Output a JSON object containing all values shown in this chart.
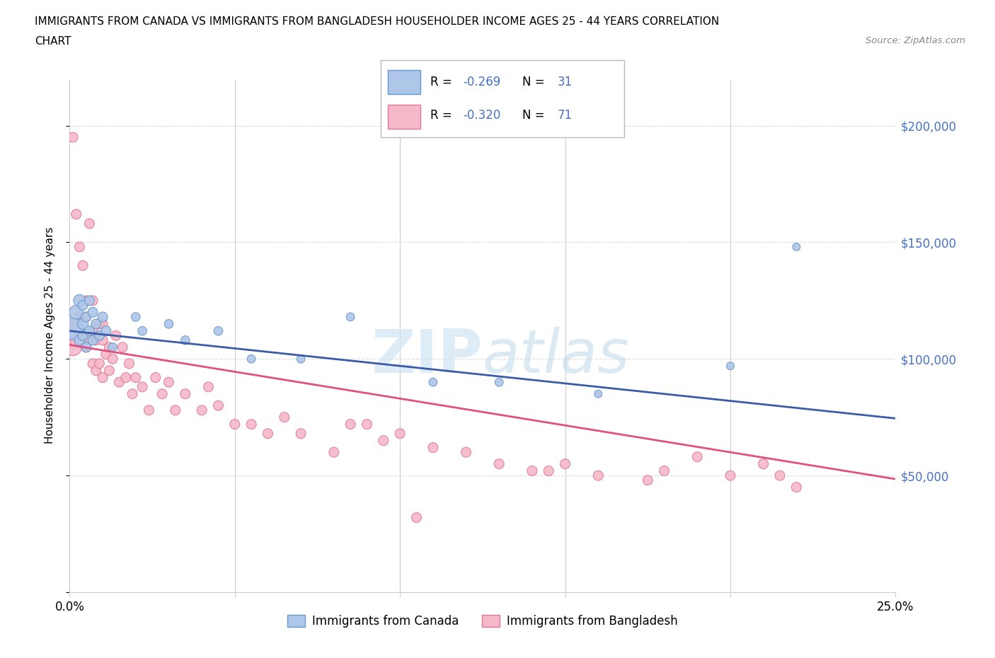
{
  "title_line1": "IMMIGRANTS FROM CANADA VS IMMIGRANTS FROM BANGLADESH HOUSEHOLDER INCOME AGES 25 - 44 YEARS CORRELATION",
  "title_line2": "CHART",
  "source": "Source: ZipAtlas.com",
  "ylabel": "Householder Income Ages 25 - 44 years",
  "xlim": [
    0.0,
    0.25
  ],
  "ylim": [
    0,
    220000
  ],
  "yticks": [
    0,
    50000,
    100000,
    150000,
    200000
  ],
  "xticks": [
    0.0,
    0.05,
    0.1,
    0.15,
    0.2,
    0.25
  ],
  "canada_color": "#aec6e8",
  "canada_edge_color": "#6699cc",
  "bangladesh_color": "#f5b8c8",
  "bangladesh_edge_color": "#e07898",
  "canada_R": -0.269,
  "canada_N": 31,
  "bangladesh_R": -0.32,
  "bangladesh_N": 71,
  "canada_line_color": "#3a5ca8",
  "bangladesh_line_color": "#e05080",
  "watermark": "ZIPatlas",
  "legend_R_color": "#4472c4",
  "canada_intercept": 112000,
  "canada_slope": -150000,
  "bangladesh_intercept": 106000,
  "bangladesh_slope": -230000,
  "canada_scatter_x": [
    0.001,
    0.002,
    0.003,
    0.003,
    0.004,
    0.004,
    0.004,
    0.005,
    0.005,
    0.006,
    0.006,
    0.007,
    0.007,
    0.008,
    0.009,
    0.01,
    0.011,
    0.013,
    0.02,
    0.022,
    0.03,
    0.035,
    0.045,
    0.055,
    0.07,
    0.085,
    0.11,
    0.13,
    0.16,
    0.2,
    0.22
  ],
  "canada_scatter_y": [
    113000,
    120000,
    125000,
    108000,
    115000,
    110000,
    123000,
    105000,
    118000,
    112000,
    125000,
    108000,
    120000,
    115000,
    110000,
    118000,
    112000,
    105000,
    118000,
    112000,
    115000,
    108000,
    112000,
    100000,
    100000,
    118000,
    90000,
    90000,
    85000,
    97000,
    148000
  ],
  "canada_scatter_size": [
    500,
    200,
    150,
    120,
    120,
    100,
    100,
    100,
    100,
    100,
    100,
    100,
    100,
    100,
    100,
    100,
    100,
    80,
    80,
    80,
    80,
    80,
    80,
    70,
    70,
    70,
    70,
    70,
    60,
    60,
    60
  ],
  "bangladesh_scatter_x": [
    0.001,
    0.001,
    0.002,
    0.002,
    0.002,
    0.003,
    0.003,
    0.003,
    0.004,
    0.004,
    0.005,
    0.005,
    0.005,
    0.006,
    0.006,
    0.007,
    0.007,
    0.007,
    0.008,
    0.008,
    0.009,
    0.009,
    0.01,
    0.01,
    0.01,
    0.011,
    0.012,
    0.012,
    0.013,
    0.014,
    0.015,
    0.016,
    0.017,
    0.018,
    0.019,
    0.02,
    0.022,
    0.024,
    0.026,
    0.028,
    0.03,
    0.032,
    0.035,
    0.04,
    0.042,
    0.045,
    0.05,
    0.055,
    0.06,
    0.065,
    0.07,
    0.08,
    0.09,
    0.1,
    0.11,
    0.12,
    0.13,
    0.14,
    0.15,
    0.16,
    0.18,
    0.19,
    0.2,
    0.21,
    0.215,
    0.22,
    0.145,
    0.175,
    0.105,
    0.095,
    0.085
  ],
  "bangladesh_scatter_y": [
    105000,
    195000,
    115000,
    162000,
    108000,
    148000,
    112000,
    118000,
    140000,
    108000,
    125000,
    118000,
    105000,
    158000,
    108000,
    125000,
    112000,
    98000,
    108000,
    95000,
    115000,
    98000,
    108000,
    92000,
    115000,
    102000,
    105000,
    95000,
    100000,
    110000,
    90000,
    105000,
    92000,
    98000,
    85000,
    92000,
    88000,
    78000,
    92000,
    85000,
    90000,
    78000,
    85000,
    78000,
    88000,
    80000,
    72000,
    72000,
    68000,
    75000,
    68000,
    60000,
    72000,
    68000,
    62000,
    60000,
    55000,
    52000,
    55000,
    50000,
    52000,
    58000,
    50000,
    55000,
    50000,
    45000,
    52000,
    48000,
    32000,
    65000,
    72000
  ],
  "bangladesh_scatter_size": [
    300,
    100,
    200,
    100,
    150,
    100,
    100,
    100,
    100,
    100,
    100,
    100,
    100,
    100,
    100,
    100,
    100,
    100,
    100,
    100,
    100,
    100,
    100,
    100,
    100,
    100,
    100,
    100,
    100,
    100,
    100,
    100,
    100,
    100,
    100,
    100,
    100,
    100,
    100,
    100,
    100,
    100,
    100,
    100,
    100,
    100,
    100,
    100,
    100,
    100,
    100,
    100,
    100,
    100,
    100,
    100,
    100,
    100,
    100,
    100,
    100,
    100,
    100,
    100,
    100,
    100,
    100,
    100,
    100,
    100,
    100
  ]
}
